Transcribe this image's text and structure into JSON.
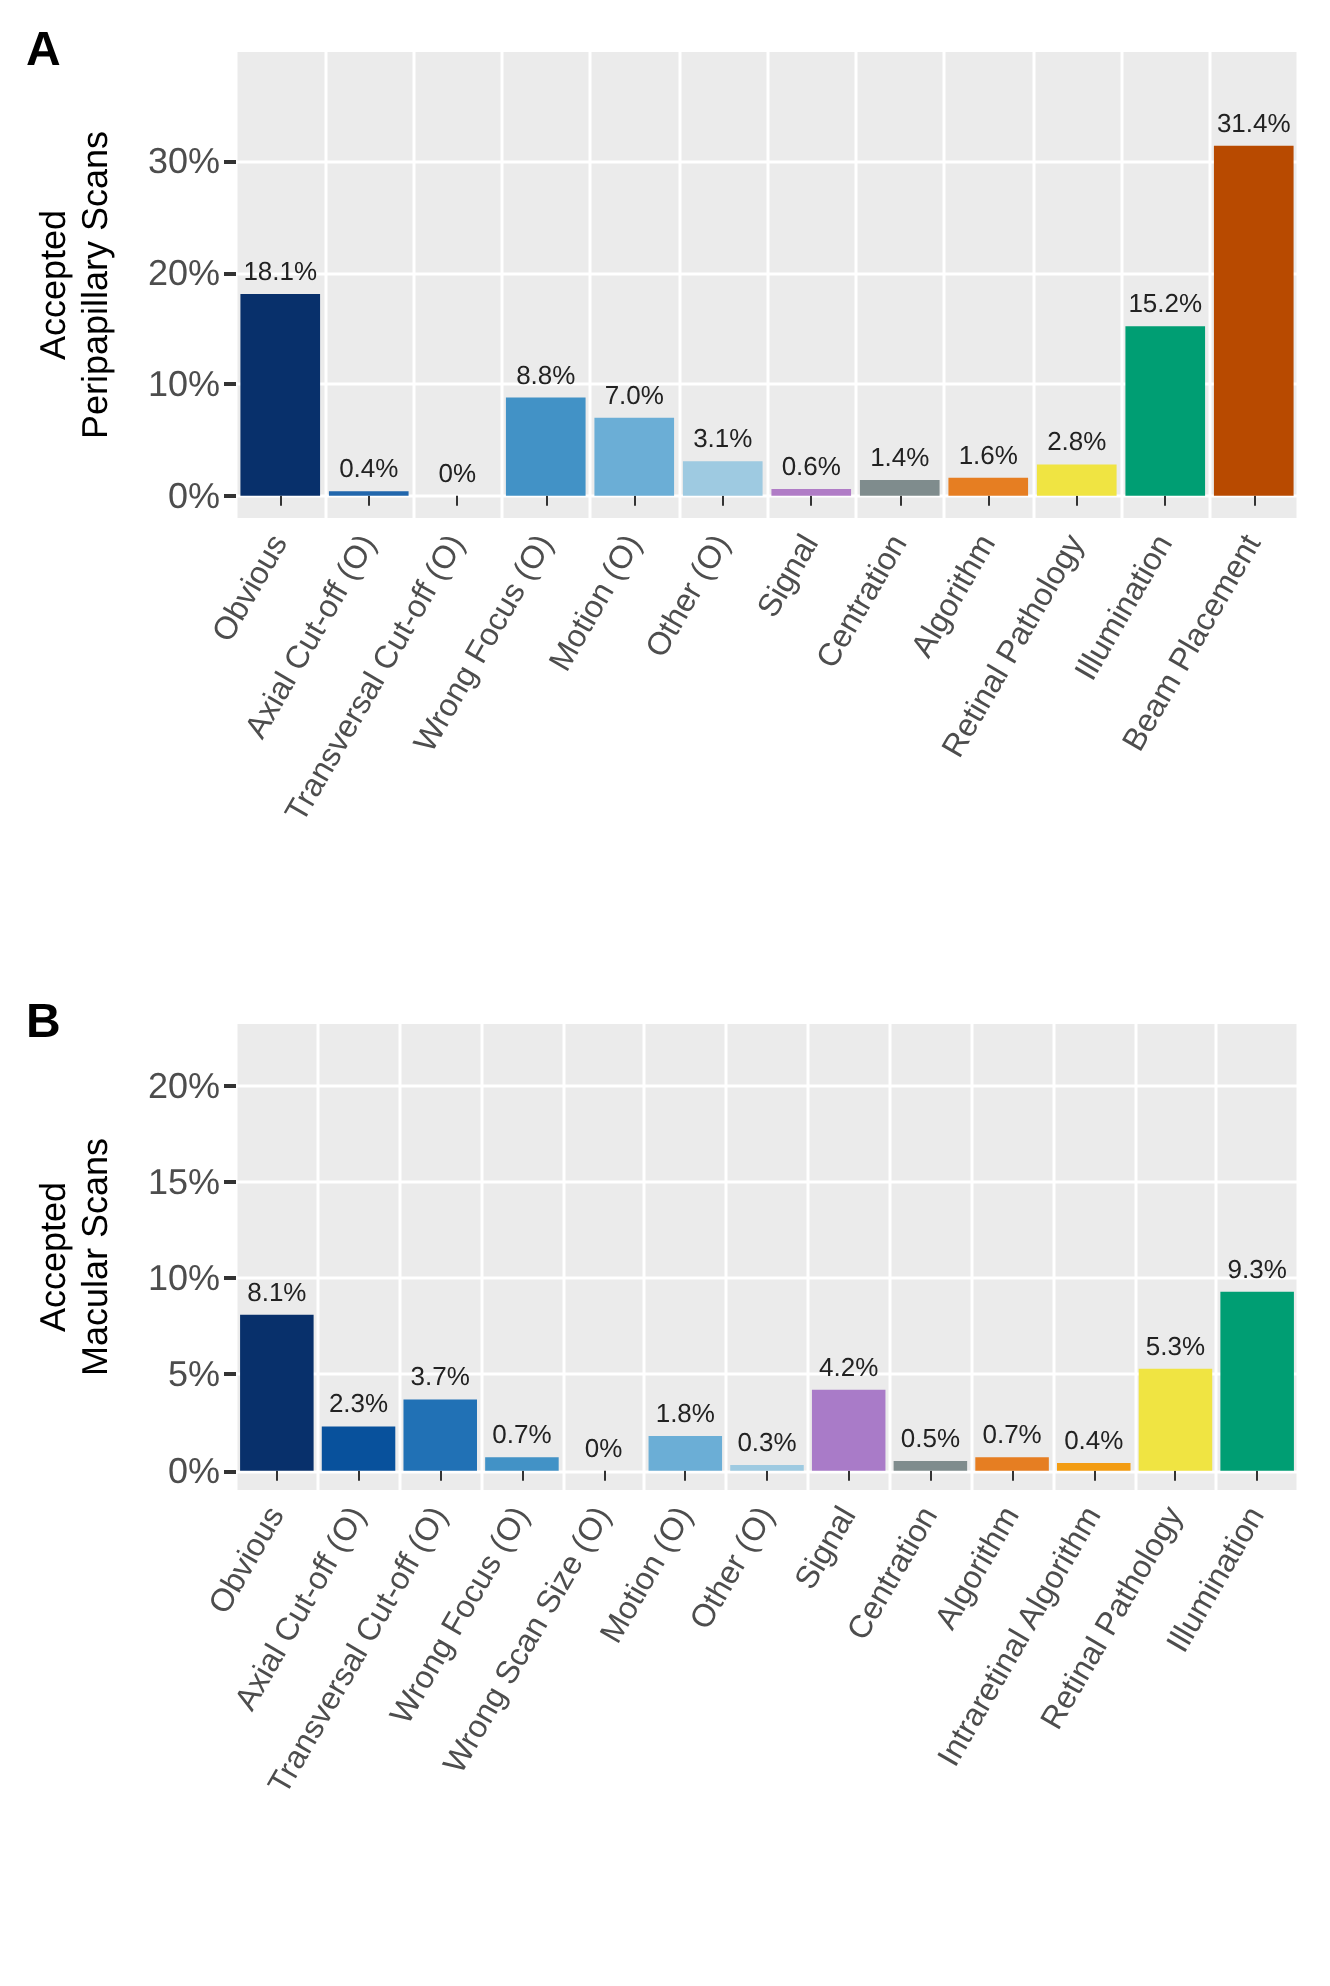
{
  "chart_data": [
    {
      "type": "bar",
      "title": "A",
      "ylabel": "Accepted\nPeripapillary Scans",
      "categories": [
        "Obvious",
        "Axial Cut-off (O)",
        "Transversal Cut-off (O)",
        "Wrong Focus (O)",
        "Motion (O)",
        "Other (O)",
        "Signal",
        "Centration",
        "Algorithm",
        "Retinal Pathology",
        "Illumination",
        "Beam Placement"
      ],
      "values": [
        18.1,
        0.4,
        0,
        8.8,
        7.0,
        3.1,
        0.6,
        1.4,
        1.6,
        2.8,
        15.2,
        31.4
      ],
      "value_labels": [
        "18.1%",
        "0.4%",
        "0%",
        "8.8%",
        "7.0%",
        "3.1%",
        "0.6%",
        "1.4%",
        "1.6%",
        "2.8%",
        "15.2%",
        "31.4%"
      ],
      "colors": [
        "#08306b",
        "#2166ac",
        "#2171b5",
        "#4292c6",
        "#6baed6",
        "#9ecae1",
        "#b07cc6",
        "#7f8c8d",
        "#e67e22",
        "#f0e442",
        "#009e73",
        "#b84a00"
      ],
      "ylim": [
        -2,
        39.8
      ],
      "yticks": [
        {
          "value": 0,
          "label": "0%"
        },
        {
          "value": 10,
          "label": "10%"
        },
        {
          "value": 20,
          "label": "20%"
        },
        {
          "value": 30,
          "label": "30%"
        }
      ],
      "grid": true
    },
    {
      "type": "bar",
      "title": "B",
      "ylabel": "Accepted\nMacular Scans",
      "categories": [
        "Obvious",
        "Axial Cut-off (O)",
        "Transversal Cut-off (O)",
        "Wrong Focus (O)",
        "Wrong Scan Size (O)",
        "Motion (O)",
        "Other (O)",
        "Signal",
        "Centration",
        "Algorithm",
        "Intraretinal Algorithm",
        "Retinal Pathology",
        "Illumination"
      ],
      "values": [
        8.1,
        2.3,
        3.7,
        0.7,
        0,
        1.8,
        0.3,
        4.2,
        0.5,
        0.7,
        0.4,
        5.3,
        9.3
      ],
      "value_labels": [
        "8.1%",
        "2.3%",
        "3.7%",
        "0.7%",
        "0%",
        "1.8%",
        "0.3%",
        "4.2%",
        "0.5%",
        "0.7%",
        "0.4%",
        "5.3%",
        "9.3%"
      ],
      "colors": [
        "#08306b",
        "#08519c",
        "#2171b5",
        "#4292c6",
        "#5a9fd4",
        "#6baed6",
        "#9ecae1",
        "#a97bc8",
        "#7f8c8d",
        "#e67e22",
        "#f39c12",
        "#f0e442",
        "#009e73"
      ],
      "ylim": [
        -1,
        23.2
      ],
      "yticks": [
        {
          "value": 0,
          "label": "0%"
        },
        {
          "value": 5,
          "label": "5%"
        },
        {
          "value": 10,
          "label": "10%"
        },
        {
          "value": 15,
          "label": "15%"
        },
        {
          "value": 20,
          "label": "20%"
        }
      ],
      "grid": true
    }
  ]
}
